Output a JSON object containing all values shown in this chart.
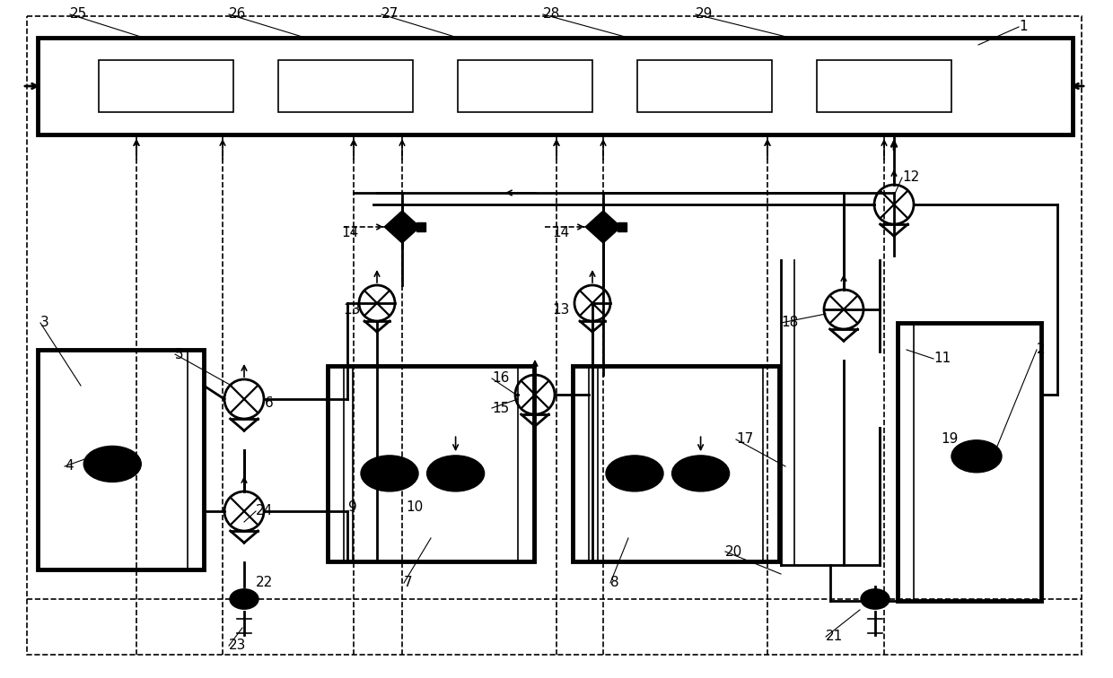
{
  "bg_color": "#ffffff",
  "line_color": "#000000",
  "fig_width": 12.4,
  "fig_height": 7.56,
  "dpi": 100
}
